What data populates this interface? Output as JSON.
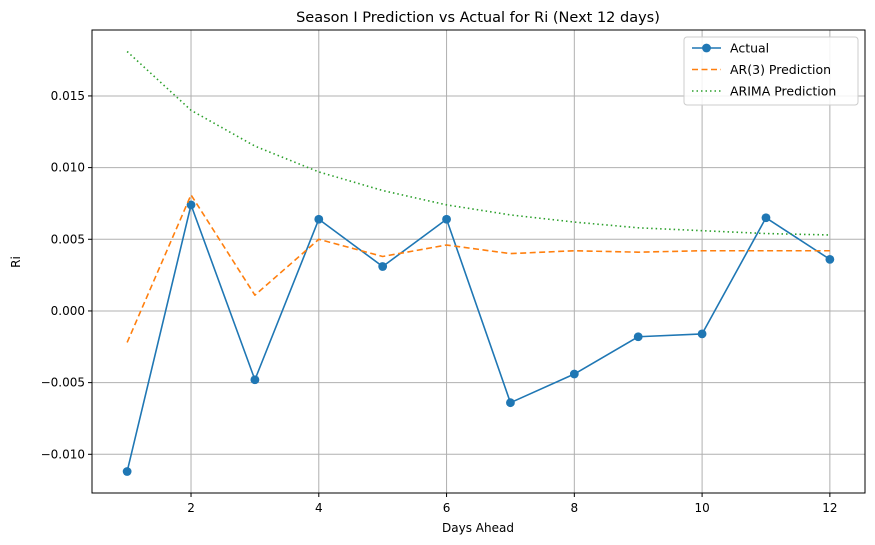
{
  "chart_data": {
    "type": "line",
    "title": "Season I Prediction vs Actual for Ri (Next 12 days)",
    "xlabel": "Days Ahead",
    "ylabel": "Ri",
    "x": [
      1,
      2,
      3,
      4,
      5,
      6,
      7,
      8,
      9,
      10,
      11,
      12
    ],
    "xlim": [
      0.45,
      12.55
    ],
    "ylim": [
      -0.0127,
      0.0196
    ],
    "xticks": [
      2,
      4,
      6,
      8,
      10,
      12
    ],
    "xtick_labels": [
      "2",
      "4",
      "6",
      "8",
      "10",
      "12"
    ],
    "yticks": [
      -0.01,
      -0.005,
      0.0,
      0.005,
      0.01,
      0.015
    ],
    "ytick_labels": [
      "−0.010",
      "−0.005",
      "0.000",
      "0.005",
      "0.010",
      "0.015"
    ],
    "grid": true,
    "legend_position": "top-right",
    "series": [
      {
        "name": "Actual",
        "color": "#1f77b4",
        "line_style": "solid",
        "marker": "circle",
        "values": [
          -0.0112,
          0.0074,
          -0.0048,
          0.0064,
          0.0031,
          0.0064,
          -0.0064,
          -0.0044,
          -0.0018,
          -0.0016,
          0.0065,
          0.0036
        ]
      },
      {
        "name": "AR(3) Prediction",
        "color": "#ff7f0e",
        "line_style": "dashed",
        "marker": "none",
        "values": [
          -0.0022,
          0.0081,
          0.0011,
          0.005,
          0.0038,
          0.0046,
          0.004,
          0.0042,
          0.0041,
          0.0042,
          0.0042,
          0.0042
        ]
      },
      {
        "name": "ARIMA Prediction",
        "color": "#2ca02c",
        "line_style": "dotted",
        "marker": "none",
        "values": [
          0.0181,
          0.014,
          0.0115,
          0.0097,
          0.0084,
          0.0074,
          0.0067,
          0.0062,
          0.0058,
          0.0056,
          0.0054,
          0.0053
        ]
      }
    ]
  }
}
